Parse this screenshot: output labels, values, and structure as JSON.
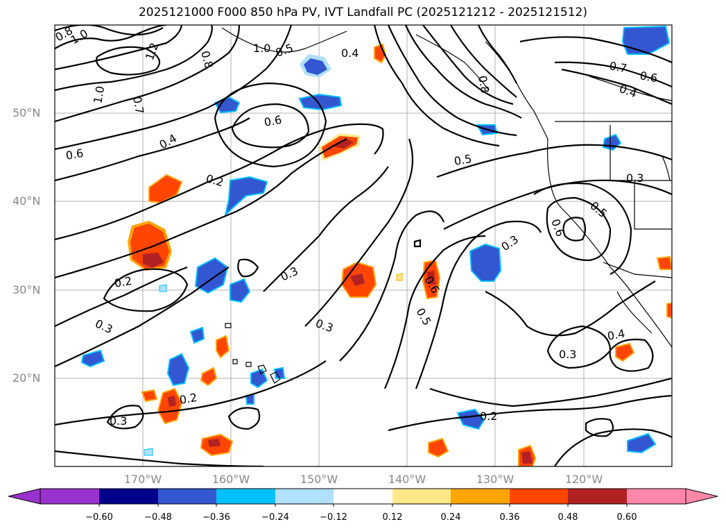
{
  "title": "2025121000 F000 850 hPa PV, IVT Landfall PC (2025121212 - 2025121512)",
  "lat_labels": [
    "50°N",
    "40°N",
    "30°N",
    "20°N"
  ],
  "lon_labels": [
    "170°W",
    "160°W",
    "150°W",
    "140°W",
    "130°W",
    "120°W"
  ],
  "contour_labels": [
    "0.8",
    "1.0",
    "1.2",
    "0.8",
    "1.0",
    "0.5",
    "0.4",
    "1.0",
    "0.7",
    "0.6",
    "0.4",
    "0.6",
    "0.2",
    "0.2",
    "0.3",
    "0.3",
    "0.3",
    "0.6",
    "0.5",
    "0.5",
    "0.6",
    "0.3",
    "0.5",
    "0.2",
    "0.7",
    "0.6",
    "0.4",
    "0.8",
    "0.3",
    "0.4",
    "0.3",
    "0.2",
    "0.3"
  ],
  "colorbar": {
    "ticks": [
      "−0.60",
      "−0.48",
      "−0.36",
      "−0.24",
      "−0.12",
      "0.12",
      "0.24",
      "0.36",
      "0.48",
      "0.60"
    ],
    "colors": [
      "#9932cc",
      "#00008b",
      "#3357d0",
      "#00bfff",
      "#b0e0fa",
      "#ffffff",
      "#ffe88a",
      "#ffa500",
      "#ff4500",
      "#b22222",
      "#ff88aa"
    ]
  },
  "shading_colors": {
    "neg_dark": "#3357d0",
    "neg_mid": "#00bfff",
    "neg_edge": "#b0e0fa",
    "pos_edge": "#ffe88a",
    "pos_mid": "#ff4500",
    "pos_dark": "#b22222"
  }
}
